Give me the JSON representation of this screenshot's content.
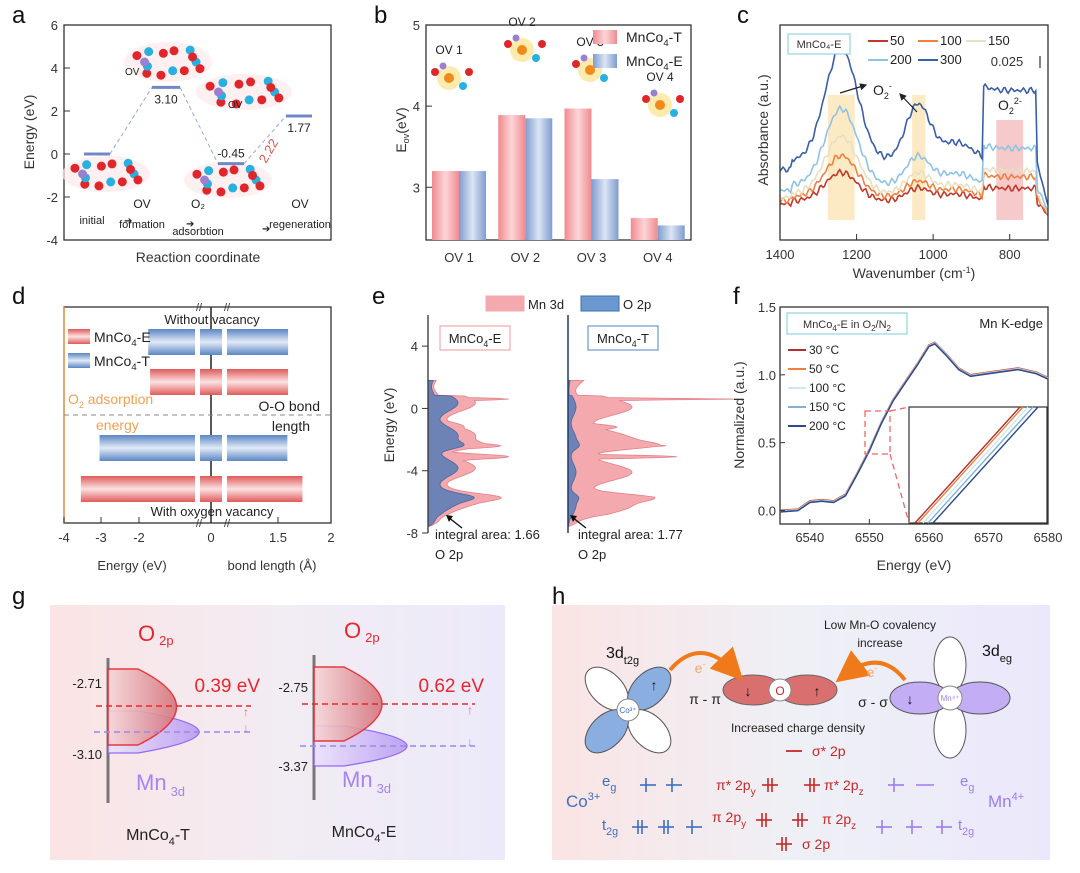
{
  "figure": {
    "panel_letters": [
      "a",
      "b",
      "c",
      "d",
      "e",
      "f",
      "g",
      "h"
    ]
  },
  "chart_data": [
    {
      "id": "a",
      "type": "line",
      "title": "",
      "xlabel": "Reaction coordinate",
      "ylabel": "Energy (eV)",
      "ylim": [
        -4,
        6
      ],
      "yticks": [
        -4,
        -2,
        0,
        2,
        4,
        6
      ],
      "steps": [
        {
          "label": "initial",
          "energy": 0.0,
          "value_label": ""
        },
        {
          "label": "OV formation",
          "energy": 3.1,
          "value_label": "3.10"
        },
        {
          "label": "O2 adsorbtion",
          "energy": -0.45,
          "value_label": "-0.45"
        },
        {
          "label": "OV regeneration",
          "energy": 1.77,
          "value_label": "1.77"
        }
      ],
      "stage_labels": [
        {
          "line1": "",
          "line2": "initial"
        },
        {
          "line1": "OV",
          "line2": "formation"
        },
        {
          "line1": "O₂",
          "line2": "adsorbtion"
        },
        {
          "line1": "OV",
          "line2": "regeneration"
        }
      ],
      "annotations": {
        "barrier": "2.22",
        "ov_tag": "OV"
      },
      "colors": {
        "level": "#6f88c4",
        "barrier": "#d9534f"
      }
    },
    {
      "id": "b",
      "type": "bar",
      "xlabel": "",
      "ylabel": "E_ov(eV)",
      "ylim": [
        2.35,
        5
      ],
      "yticks": [
        3,
        4,
        5
      ],
      "categories": [
        "OV 1",
        "OV 2",
        "OV 3",
        "OV 4"
      ],
      "series": [
        {
          "name": "MnCo₄-T",
          "values": [
            3.2,
            3.89,
            3.97,
            2.62
          ],
          "color": "#f08a8f"
        },
        {
          "name": "MnCo₄-E",
          "values": [
            3.2,
            3.85,
            3.1,
            2.53
          ],
          "color": "#7f9ccf"
        }
      ],
      "structure_labels": [
        "OV 1",
        "OV 2",
        "OV 3",
        "OV 4"
      ],
      "legend": "top-right"
    },
    {
      "id": "c",
      "type": "line",
      "xlabel": "Wavenumber (cm⁻¹)",
      "ylabel": "Absorbance (a.u.)",
      "xlim": [
        1400,
        700
      ],
      "xticks": [
        1400,
        1200,
        1000,
        800
      ],
      "sample_label": "MnCo₄-E",
      "scale_bar": "0.025",
      "series": [
        {
          "name": "50",
          "color": "#c0392b",
          "peaks": [
            0.18,
            0.08,
            0.15,
            0.1
          ]
        },
        {
          "name": "100",
          "color": "#f08040",
          "peaks": [
            0.26,
            0.1,
            0.17,
            0.16
          ]
        },
        {
          "name": "150",
          "color": "#e8dfbf",
          "peaks": [
            0.36,
            0.13,
            0.19,
            0.18
          ]
        },
        {
          "name": "200",
          "color": "#8ec3e6",
          "peaks": [
            0.48,
            0.18,
            0.25,
            0.29
          ]
        },
        {
          "name": "300",
          "color": "#3a5ea8",
          "peaks": [
            0.7,
            0.35,
            0.38,
            0.55
          ]
        }
      ],
      "bands": [
        {
          "label": "O₂⁻",
          "from": 1275,
          "to": 1205,
          "color": "#fbe3b0"
        },
        {
          "label": "O₂⁻",
          "from": 1055,
          "to": 1020,
          "color": "#fbe3b0"
        },
        {
          "label": "O₂²⁻",
          "from": 835,
          "to": 765,
          "color": "#f3b8b8"
        }
      ],
      "annotations": {
        "superoxide": "O₂⁻",
        "peroxide": "O₂²⁻"
      },
      "legend": "top"
    },
    {
      "id": "d",
      "type": "bar",
      "xlabel_left": "Energy (eV)",
      "xlabel_right": "bond length (Å)",
      "xticks": [
        "-4",
        "-3",
        "-2",
        "0",
        "1.5",
        "2"
      ],
      "legend_items": [
        {
          "name": "MnCo₄-E",
          "color": "#e05a5a"
        },
        {
          "name": "MnCo₄-T",
          "color": "#5b86c5"
        }
      ],
      "section_top": "Without vacancy",
      "section_bottom": "With oxygen vacancy",
      "left_axis_label": "O₂ adsorption energy",
      "left_axis_label_lines": [
        "O₂ adsorption",
        "energy"
      ],
      "right_axis_label_lines": [
        "O-O bond",
        "length"
      ],
      "rows": [
        {
          "group": "Without vacancy",
          "series": "MnCo₄-T",
          "adsorption_energy": -1.75,
          "bond_length": 1.25
        },
        {
          "group": "Without vacancy",
          "series": "MnCo₄-E",
          "adsorption_energy": -1.7,
          "bond_length": 1.25
        },
        {
          "group": "With oxygen vacancy",
          "series": "MnCo₄-T",
          "adsorption_energy": -3.05,
          "bond_length": 1.24
        },
        {
          "group": "With oxygen vacancy",
          "series": "MnCo₄-E",
          "adsorption_energy": -3.55,
          "bond_length": 1.45
        }
      ]
    },
    {
      "id": "e",
      "type": "area",
      "ylabel": "Energy (eV)",
      "ylim": [
        -8,
        6
      ],
      "yticks": [
        4,
        0,
        -4,
        -8
      ],
      "legend_items": [
        {
          "name": "Mn 3d",
          "color": "#f3a9ad"
        },
        {
          "name": "O 2p",
          "color": "#6a98cf"
        }
      ],
      "subpanels": [
        {
          "label": "MnCo₄-E",
          "integral_label": "integral area: 1.66",
          "orbital_label": "O 2p",
          "integral_area": 1.66
        },
        {
          "label": "MnCo₄-T",
          "integral_label": "integral area: 1.77",
          "orbital_label": "O 2p",
          "integral_area": 1.77
        }
      ]
    },
    {
      "id": "f",
      "type": "line",
      "xlabel": "Energy (eV)",
      "ylabel": "Normalized (a.u.)",
      "xlim": [
        6535,
        6580
      ],
      "ylim": [
        -0.1,
        1.5
      ],
      "xticks": [
        6540,
        6550,
        6560,
        6570,
        6580
      ],
      "yticks": [
        0.0,
        0.5,
        1.0,
        1.5
      ],
      "ytick_labels": [
        "0.0",
        "0.5",
        "1.0",
        "1.5"
      ],
      "sample_label": "MnCo₄-E  in O₂/N₂",
      "edge_label": "Mn K-edge",
      "series": [
        {
          "name": "30 °C",
          "color": "#b03030"
        },
        {
          "name": "50 °C",
          "color": "#f08040"
        },
        {
          "name": "100 °C",
          "color": "#cfe6ef"
        },
        {
          "name": "150 °C",
          "color": "#7fb3d9"
        },
        {
          "name": "200 °C",
          "color": "#2e4a8a"
        }
      ],
      "points": [
        [
          6535,
          0.0
        ],
        [
          6538,
          0.01
        ],
        [
          6540,
          0.07
        ],
        [
          6542,
          0.08
        ],
        [
          6544,
          0.07
        ],
        [
          6546,
          0.12
        ],
        [
          6548,
          0.28
        ],
        [
          6550,
          0.45
        ],
        [
          6552,
          0.65
        ],
        [
          6554,
          0.82
        ],
        [
          6556,
          0.95
        ],
        [
          6558,
          1.08
        ],
        [
          6560,
          1.22
        ],
        [
          6561,
          1.24
        ],
        [
          6563,
          1.15
        ],
        [
          6565,
          1.05
        ],
        [
          6567,
          1.0
        ],
        [
          6570,
          1.02
        ],
        [
          6575,
          1.05
        ],
        [
          6578,
          1.02
        ],
        [
          6580,
          0.98
        ]
      ],
      "inset": true
    }
  ],
  "panel_g": {
    "left": {
      "title": "MnCo₄-T",
      "o2p_label": "O",
      "o2p_sub": "2p",
      "mn3d_label": "Mn",
      "mn3d_sub": "3d",
      "upper_value": "-2.71",
      "lower_value": "-3.10",
      "gap_label": "0.39 eV"
    },
    "right": {
      "title": "MnCo₄-E",
      "o2p_label": "O",
      "o2p_sub": "2p",
      "mn3d_label": "Mn",
      "mn3d_sub": "3d",
      "upper_value": "-2.75",
      "lower_value": "-3.37",
      "gap_label": "0.62 eV"
    },
    "colors": {
      "o2p": "#e8262d",
      "mn3d": "#8b5cf6"
    }
  },
  "panel_h": {
    "left_orbital_label": "3d",
    "left_orbital_sub": "t2g",
    "right_orbital_label": "3d",
    "right_orbital_sub": "eg",
    "co_center": "Co³⁺",
    "mn_center": "Mn⁴⁺",
    "o_center": "O",
    "electron_label": "e⁻",
    "pi_pi": "π - π",
    "sigma_sigma": "σ - σ",
    "covalency_line1": "Low Mn-O covalency",
    "covalency_line2": "increase",
    "charge_density": "Increased charge density",
    "mo_levels": {
      "sigma_star": "σ* 2p",
      "pi_star_y": "π* 2p",
      "pi_star_y_sub": "y",
      "pi_star_z": "π* 2p",
      "pi_star_z_sub": "z",
      "pi_y": "π 2p",
      "pi_y_sub": "y",
      "pi_z": "π 2p",
      "pi_z_sub": "z",
      "sigma": "σ 2p"
    },
    "co_ion": "Co³⁺",
    "mn_ion": "Mn⁴⁺",
    "eg": "e",
    "eg_sub": "g",
    "t2g": "t",
    "t2g_sub": "2g",
    "colors": {
      "co": "#3d6fc4",
      "o": "#c62828",
      "mn": "#9d7cf0",
      "arrow": "#f07a1a"
    }
  }
}
